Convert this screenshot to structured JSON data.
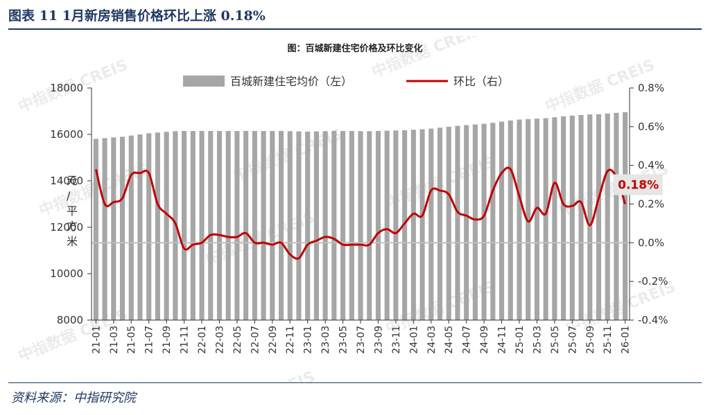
{
  "figure": {
    "title": "图表 11 1月新房销售价格环比上涨 0.18%",
    "source": "资料来源：中指研究院"
  },
  "watermark_text": "中指数据 CREIS",
  "colors": {
    "bar": "#a6a6a6",
    "line": "#c00000",
    "title": "#1f3864",
    "axis": "#333333",
    "zero_line": "#bfbfbf",
    "highlight_label_bg": "#e6e6e6"
  },
  "chart_data": {
    "type": "bar+line",
    "title": "图：百城新建住宅价格及环比变化",
    "ylabel_left": "元/平方米",
    "ylim_left": [
      8000,
      18000
    ],
    "yticks_left": [
      8000,
      10000,
      12000,
      14000,
      16000,
      18000
    ],
    "ylim_right": [
      -0.4,
      0.8
    ],
    "yticks_right": [
      "-0.4%",
      "-0.2%",
      "0.0%",
      "0.2%",
      "0.4%",
      "0.6%",
      "0.8%"
    ],
    "legend_position": "top",
    "x": [
      "21-01",
      "21-02",
      "21-03",
      "21-04",
      "21-05",
      "21-06",
      "21-07",
      "21-08",
      "21-09",
      "21-10",
      "21-11",
      "21-12",
      "22-01",
      "22-02",
      "22-03",
      "22-04",
      "22-05",
      "22-06",
      "22-07",
      "22-08",
      "22-09",
      "22-10",
      "22-11",
      "22-12",
      "23-01",
      "23-02",
      "23-03",
      "23-04",
      "23-05",
      "23-06",
      "23-07",
      "23-08",
      "23-09",
      "23-10",
      "23-11",
      "23-12",
      "24-01",
      "24-02",
      "24-03",
      "24-04",
      "24-05",
      "24-06",
      "24-07",
      "24-08",
      "24-09",
      "24-10",
      "24-11",
      "24-12",
      "25-01",
      "25-02",
      "25-03",
      "25-04",
      "25-05",
      "25-06",
      "25-07",
      "25-08",
      "25-09",
      "25-10",
      "25-11",
      "25-12",
      "26-01"
    ],
    "xtick_labels": [
      "21-01",
      "21-03",
      "21-05",
      "21-07",
      "21-09",
      "21-11",
      "22-01",
      "22-03",
      "22-05",
      "22-07",
      "22-09",
      "22-11",
      "23-01",
      "23-03",
      "23-05",
      "23-07",
      "23-09",
      "23-11",
      "24-01",
      "24-03",
      "24-05",
      "24-07",
      "24-09",
      "24-11",
      "25-01",
      "25-03",
      "25-05",
      "25-07",
      "25-09",
      "25-11",
      "26-01"
    ],
    "series": [
      {
        "name": "百城新建住宅均价（左）",
        "type": "bar",
        "axis": "left",
        "values": [
          15810,
          15840,
          15870,
          15900,
          15950,
          16000,
          16050,
          16080,
          16110,
          16140,
          16150,
          16150,
          16150,
          16150,
          16150,
          16150,
          16150,
          16150,
          16150,
          16150,
          16150,
          16150,
          16140,
          16130,
          16120,
          16130,
          16140,
          16150,
          16150,
          16150,
          16140,
          16140,
          16150,
          16160,
          16170,
          16180,
          16200,
          16220,
          16250,
          16290,
          16330,
          16370,
          16400,
          16430,
          16460,
          16500,
          16550,
          16600,
          16640,
          16660,
          16680,
          16700,
          16740,
          16780,
          16810,
          16840,
          16860,
          16870,
          16900,
          16930,
          16960
        ]
      },
      {
        "name": "环比（右）",
        "type": "line",
        "axis": "right",
        "values": [
          0.38,
          0.2,
          0.21,
          0.23,
          0.35,
          0.36,
          0.36,
          0.2,
          0.15,
          0.1,
          -0.03,
          -0.01,
          0.0,
          0.04,
          0.04,
          0.03,
          0.03,
          0.05,
          0.0,
          0.0,
          -0.01,
          0.0,
          -0.06,
          -0.08,
          -0.01,
          0.01,
          0.03,
          0.02,
          -0.01,
          -0.01,
          -0.01,
          -0.01,
          0.05,
          0.07,
          0.05,
          0.1,
          0.15,
          0.14,
          0.27,
          0.27,
          0.25,
          0.16,
          0.14,
          0.12,
          0.14,
          0.27,
          0.36,
          0.38,
          0.24,
          0.11,
          0.18,
          0.15,
          0.31,
          0.2,
          0.19,
          0.21,
          0.09,
          0.23,
          0.37,
          0.34,
          0.2
        ]
      }
    ],
    "annotation": "0.18%"
  }
}
